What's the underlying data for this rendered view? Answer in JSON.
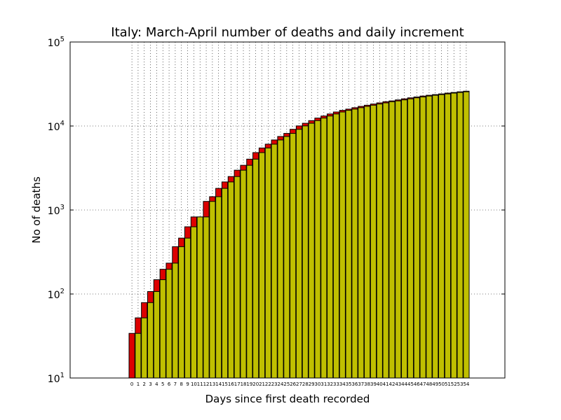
{
  "chart_data": {
    "type": "bar",
    "title": "Italy: March-April number of deaths and daily increment",
    "xlabel": "Days since first death recorded",
    "ylabel": "No of deaths",
    "yscale": "log",
    "ylim": [
      10,
      100000
    ],
    "ytick_labels": [
      {
        "base": "10",
        "exp": "1"
      },
      {
        "base": "10",
        "exp": "2"
      },
      {
        "base": "10",
        "exp": "3"
      },
      {
        "base": "10",
        "exp": "4"
      },
      {
        "base": "10",
        "exp": "5"
      }
    ],
    "grid": true,
    "colors": {
      "increment": "#dd0000",
      "previous": "#bfbf00"
    },
    "categories": [
      "0",
      "1",
      "2",
      "3",
      "4",
      "5",
      "6",
      "7",
      "8",
      "9",
      "10",
      "11",
      "12",
      "13",
      "14",
      "15",
      "16",
      "17",
      "18",
      "19",
      "20",
      "21",
      "22",
      "23",
      "24",
      "25",
      "26",
      "27",
      "28",
      "29",
      "30",
      "31",
      "32",
      "33",
      "34",
      "35",
      "36",
      "37",
      "38",
      "39",
      "40",
      "41",
      "42",
      "43",
      "44",
      "45",
      "46",
      "47",
      "48",
      "49",
      "50",
      "51",
      "52",
      "53",
      "54"
    ],
    "series": [
      {
        "values": [
          34,
          52,
          79,
          107,
          148,
          197,
          233,
          366,
          463,
          631,
          827,
          827,
          1266,
          1441,
          1809,
          2158,
          2503,
          2978,
          3405,
          4032,
          4825,
          5476,
          6077,
          6820,
          7503,
          8165,
          9134,
          10023,
          10779,
          11591,
          12428,
          13155,
          13915,
          14681,
          15362,
          15887,
          16523,
          17127,
          17669,
          18279,
          18849,
          19468,
          19899,
          20465,
          21067,
          21645,
          22170,
          22745,
          23227,
          23660,
          24114,
          24648,
          25085,
          25549,
          25969
        ]
      }
    ]
  }
}
